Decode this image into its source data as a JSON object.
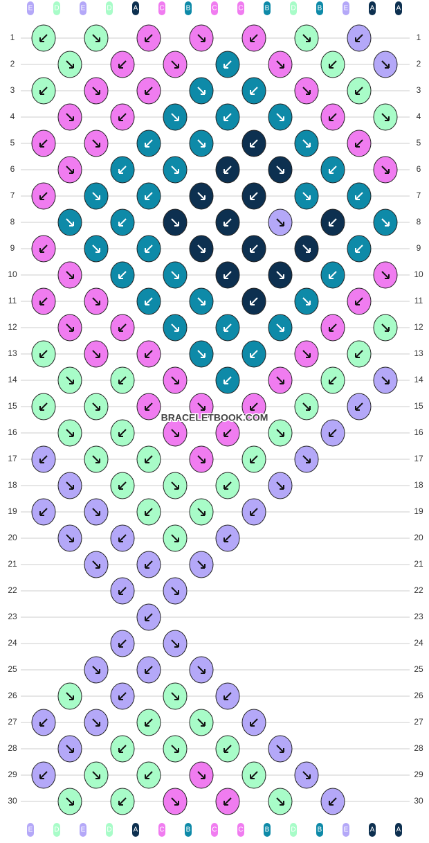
{
  "pattern": {
    "top_labels": [
      "E",
      "D",
      "E",
      "D",
      "A",
      "C",
      "B",
      "C",
      "C",
      "B",
      "D",
      "B",
      "E",
      "A",
      "A"
    ],
    "bottom_labels": [
      "E",
      "D",
      "E",
      "D",
      "A",
      "C",
      "B",
      "C",
      "C",
      "B",
      "D",
      "B",
      "E",
      "A",
      "A"
    ],
    "row_numbers": [
      1,
      2,
      3,
      4,
      5,
      6,
      7,
      8,
      9,
      10,
      11,
      12,
      13,
      14,
      15,
      16,
      17,
      18,
      19,
      20,
      21,
      22,
      23,
      24,
      25,
      26,
      27,
      28,
      29,
      30
    ],
    "watermark": "BRACELETBOOK.COM"
  }
}
